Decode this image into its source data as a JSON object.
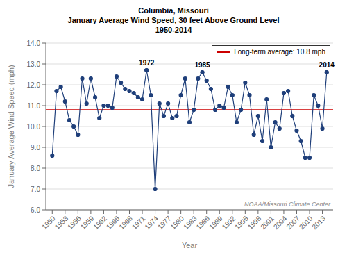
{
  "chart_data": {
    "type": "line",
    "title": "Columbia, Missouri\nJanuary Average Wind Speed, 30 feet Above Ground Level\n1950-2014",
    "xlabel": "Year",
    "ylabel": "January Average Wind Speed (mph)",
    "x": [
      1950,
      1951,
      1952,
      1953,
      1954,
      1955,
      1956,
      1957,
      1958,
      1959,
      1960,
      1961,
      1962,
      1963,
      1964,
      1965,
      1966,
      1967,
      1968,
      1969,
      1970,
      1971,
      1972,
      1973,
      1974,
      1975,
      1976,
      1977,
      1978,
      1979,
      1980,
      1981,
      1982,
      1983,
      1984,
      1985,
      1986,
      1987,
      1988,
      1989,
      1990,
      1991,
      1992,
      1993,
      1994,
      1995,
      1996,
      1997,
      1998,
      1999,
      2000,
      2001,
      2002,
      2003,
      2004,
      2005,
      2006,
      2007,
      2008,
      2009,
      2010,
      2011,
      2012,
      2013,
      2014
    ],
    "series": [
      {
        "color": "#1F3F7A",
        "marker": "circle",
        "values": [
          8.6,
          11.7,
          11.9,
          11.2,
          10.3,
          10.0,
          9.6,
          12.3,
          11.1,
          12.3,
          11.4,
          10.4,
          11.0,
          11.0,
          10.9,
          12.4,
          12.1,
          11.8,
          11.7,
          11.6,
          11.4,
          11.3,
          12.7,
          11.5,
          7.0,
          11.1,
          10.5,
          11.1,
          10.4,
          10.5,
          11.5,
          12.3,
          10.2,
          10.8,
          12.3,
          12.6,
          12.2,
          11.8,
          10.8,
          11.0,
          10.9,
          11.9,
          11.5,
          10.2,
          10.8,
          12.1,
          11.5,
          9.6,
          10.5,
          9.3,
          11.3,
          9.0,
          10.2,
          9.9,
          11.6,
          11.7,
          10.5,
          9.8,
          9.3,
          8.5,
          8.5,
          11.5,
          11.0,
          9.9,
          12.6
        ]
      }
    ],
    "hlines": [
      {
        "name": "Long-term average: 10.8 mph",
        "value": 10.8,
        "color": "#CC0000"
      }
    ],
    "annotations": [
      {
        "x": 1972,
        "y": 12.7,
        "text": "1972"
      },
      {
        "x": 1985,
        "y": 12.6,
        "text": "1985"
      },
      {
        "x": 2014,
        "y": 12.6,
        "text": "2014"
      },
      {
        "text": "NOAA/Missouri Climate Center"
      }
    ],
    "xlim": [
      1948.5,
      2015.5
    ],
    "xticks": [
      1950,
      1953,
      1956,
      1959,
      1962,
      1965,
      1968,
      1971,
      1974,
      1977,
      1980,
      1983,
      1986,
      1989,
      1992,
      1995,
      1998,
      2001,
      2004,
      2007,
      2010,
      2013
    ],
    "ylim": [
      6.0,
      14.0
    ],
    "yticks": [
      {
        "value": 6.0,
        "label": "6.0"
      },
      {
        "value": 7.0,
        "label": "7.0"
      },
      {
        "value": 8.0,
        "label": "8.0"
      },
      {
        "value": 9.0,
        "label": "9.0"
      },
      {
        "value": 10.0,
        "label": "10.0"
      },
      {
        "value": 11.0,
        "label": "11.0"
      },
      {
        "value": 12.0,
        "label": "12.0"
      },
      {
        "value": 13.0,
        "label": "13.0"
      },
      {
        "value": 14.0,
        "label": "14.0"
      }
    ],
    "grid": "y",
    "legend": "upper right"
  }
}
